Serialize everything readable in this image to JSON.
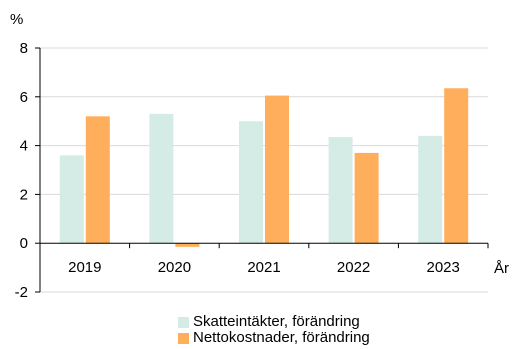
{
  "chart_data": {
    "type": "bar",
    "ylabel": "%",
    "xlabel": "År",
    "categories": [
      "2019",
      "2020",
      "2021",
      "2022",
      "2023"
    ],
    "series": [
      {
        "name": "Skatteintäkter, förändring",
        "color": "#d4ebe6",
        "values": [
          3.6,
          5.3,
          5.0,
          4.35,
          4.4
        ]
      },
      {
        "name": "Nettokostnader, förändring",
        "color": "#ffae5c",
        "values": [
          5.2,
          -0.15,
          6.05,
          3.7,
          6.35
        ]
      }
    ],
    "ylim": [
      -2,
      8
    ],
    "yticks": [
      "-2",
      "0",
      "2",
      "4",
      "6",
      "8"
    ],
    "grid": true,
    "legend_position": "bottom"
  }
}
